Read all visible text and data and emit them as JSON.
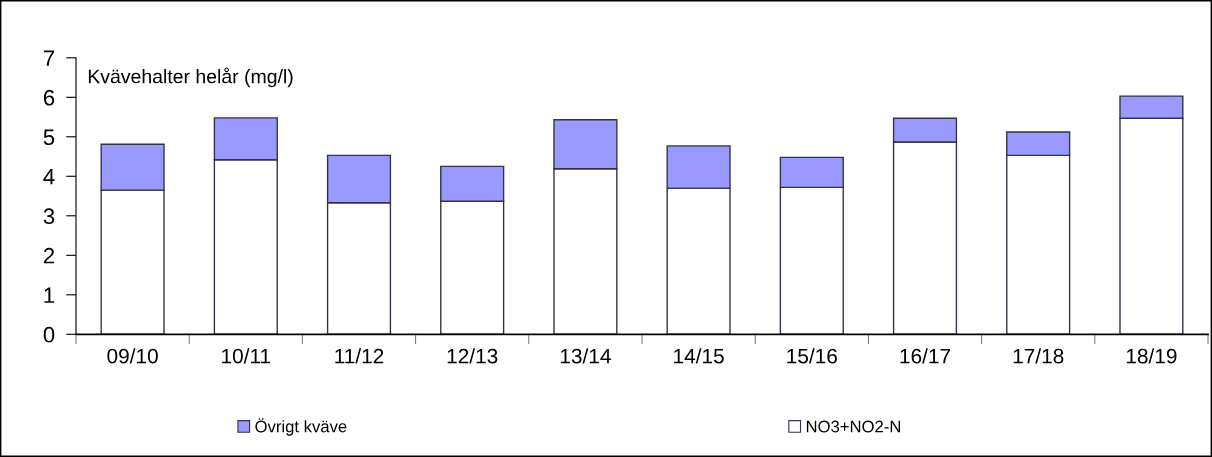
{
  "chart_data": {
    "type": "bar",
    "title": "Kvävehalter helår (mg/l)",
    "categories": [
      "09/10",
      "10/11",
      "11/12",
      "12/13",
      "13/14",
      "14/15",
      "15/16",
      "16/17",
      "17/18",
      "18/19"
    ],
    "stacked": true,
    "series": [
      {
        "name": "NO3+NO2-N",
        "color": "#ffffff",
        "values": [
          3.65,
          4.42,
          3.33,
          3.37,
          4.19,
          3.7,
          3.72,
          4.87,
          4.53,
          5.47
        ]
      },
      {
        "name": "Övrigt kväve",
        "color": "#9999ff",
        "values": [
          1.16,
          1.06,
          1.2,
          0.88,
          1.24,
          1.07,
          0.76,
          0.6,
          0.59,
          0.56
        ]
      }
    ],
    "ylim": [
      0,
      7
    ],
    "yticks": [
      0,
      1,
      2,
      3,
      4,
      5,
      6,
      7
    ],
    "grid": false,
    "legend": "bottom"
  }
}
